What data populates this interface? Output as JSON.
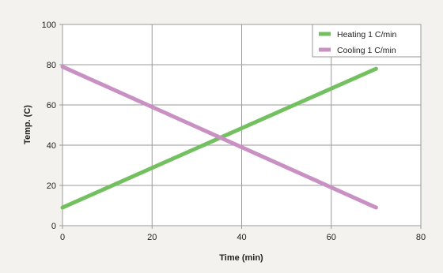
{
  "chart_data": {
    "type": "line",
    "title": "",
    "xlabel": "Time (min)",
    "ylabel": "Temp. (C)",
    "xlim": [
      0,
      80
    ],
    "ylim": [
      0,
      100
    ],
    "xticks": [
      0,
      20,
      40,
      60,
      80
    ],
    "yticks": [
      0,
      20,
      40,
      60,
      80,
      100
    ],
    "grid": true,
    "legend_position": "top-right",
    "series": [
      {
        "name": "Heating 1 C/min",
        "color": "#72c05f",
        "x": [
          0,
          70
        ],
        "y": [
          9,
          78
        ]
      },
      {
        "name": "Cooling 1 C/min",
        "color": "#c990c4",
        "x": [
          0,
          70
        ],
        "y": [
          79,
          9
        ]
      }
    ]
  },
  "colors": {
    "background": "#f3f2ee",
    "plot_background": "#ffffff",
    "grid": "#9a9a9a",
    "axis": "#555555"
  }
}
